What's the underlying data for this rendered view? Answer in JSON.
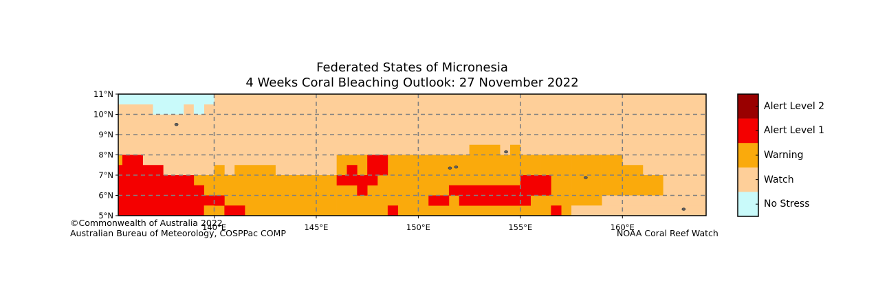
{
  "title": {
    "line1": "Federated States of Micronesia",
    "line2": "4 Weeks Coral Bleaching Outlook: 27 November 2022"
  },
  "map": {
    "lon_range": [
      135.3,
      164.1
    ],
    "lat_range": [
      5.0,
      11.0
    ],
    "cell_size_deg": 0.5,
    "lat_ticks": [
      {
        "value": 11,
        "label": "11°N"
      },
      {
        "value": 10,
        "label": "10°N"
      },
      {
        "value": 9,
        "label": "9°N"
      },
      {
        "value": 8,
        "label": "8°N"
      },
      {
        "value": 7,
        "label": "7°N"
      },
      {
        "value": 6,
        "label": "6°N"
      },
      {
        "value": 5,
        "label": "5°N"
      }
    ],
    "lon_ticks": [
      {
        "value": 140,
        "label": "140°E"
      },
      {
        "value": 145,
        "label": "145°E"
      },
      {
        "value": 150,
        "label": "150°E"
      },
      {
        "value": 155,
        "label": "155°E"
      },
      {
        "value": 160,
        "label": "160°E"
      }
    ],
    "default_level": "watch",
    "regions": [
      {
        "level": "nostress",
        "lon": [
          135.0,
          140.0
        ],
        "lat": [
          10.5,
          11.0
        ]
      },
      {
        "level": "nostress",
        "lon": [
          137.0,
          138.5
        ],
        "lat": [
          10.0,
          10.5
        ]
      },
      {
        "level": "nostress",
        "lon": [
          139.0,
          139.5
        ],
        "lat": [
          10.0,
          10.5
        ]
      },
      {
        "level": "warning",
        "lon": [
          146.0,
          156.0
        ],
        "lat": [
          5.0,
          8.0
        ]
      },
      {
        "level": "warning",
        "lon": [
          152.5,
          154.0
        ],
        "lat": [
          8.0,
          8.5
        ]
      },
      {
        "level": "warning",
        "lon": [
          154.5,
          155.0
        ],
        "lat": [
          8.0,
          8.5
        ]
      },
      {
        "level": "warning",
        "lon": [
          156.0,
          157.5
        ],
        "lat": [
          5.0,
          5.5
        ]
      },
      {
        "level": "warning",
        "lon": [
          156.0,
          157.5
        ],
        "lat": [
          5.5,
          8.0
        ]
      },
      {
        "level": "warning",
        "lon": [
          157.5,
          159.0
        ],
        "lat": [
          5.5,
          8.0
        ]
      },
      {
        "level": "warning",
        "lon": [
          159.0,
          161.0
        ],
        "lat": [
          6.0,
          7.5
        ]
      },
      {
        "level": "warning",
        "lon": [
          159.0,
          160.0
        ],
        "lat": [
          7.5,
          8.0
        ]
      },
      {
        "level": "warning",
        "lon": [
          161.0,
          162.0
        ],
        "lat": [
          6.0,
          7.0
        ]
      },
      {
        "level": "warning",
        "lon": [
          140.0,
          146.0
        ],
        "lat": [
          5.0,
          7.0
        ]
      },
      {
        "level": "warning",
        "lon": [
          139.0,
          140.0
        ],
        "lat": [
          5.0,
          7.0
        ]
      },
      {
        "level": "warning",
        "lon": [
          140.0,
          140.5
        ],
        "lat": [
          7.0,
          7.5
        ]
      },
      {
        "level": "warning",
        "lon": [
          141.0,
          143.0
        ],
        "lat": [
          7.0,
          7.5
        ]
      },
      {
        "level": "warning",
        "lon": [
          135.0,
          135.5
        ],
        "lat": [
          7.5,
          8.0
        ]
      },
      {
        "level": "alert1",
        "lon": [
          135.0,
          140.0
        ],
        "lat": [
          5.0,
          6.0
        ]
      },
      {
        "level": "alert1",
        "lon": [
          135.0,
          139.5
        ],
        "lat": [
          6.0,
          6.5
        ]
      },
      {
        "level": "alert1",
        "lon": [
          135.0,
          139.0
        ],
        "lat": [
          6.5,
          7.0
        ]
      },
      {
        "level": "alert1",
        "lon": [
          135.0,
          137.5
        ],
        "lat": [
          7.0,
          7.5
        ]
      },
      {
        "level": "alert1",
        "lon": [
          135.5,
          136.5
        ],
        "lat": [
          7.5,
          8.0
        ]
      },
      {
        "level": "alert1",
        "lon": [
          139.5,
          140.5
        ],
        "lat": [
          5.5,
          6.0
        ]
      },
      {
        "level": "alert1",
        "lon": [
          140.5,
          141.5
        ],
        "lat": [
          5.0,
          5.5
        ]
      },
      {
        "level": "warning",
        "lon": [
          139.5,
          140.0
        ],
        "lat": [
          5.0,
          5.5
        ]
      },
      {
        "level": "alert1",
        "lon": [
          146.0,
          148.0
        ],
        "lat": [
          6.5,
          7.0
        ]
      },
      {
        "level": "alert1",
        "lon": [
          146.5,
          147.0
        ],
        "lat": [
          7.0,
          7.5
        ]
      },
      {
        "level": "alert1",
        "lon": [
          147.0,
          147.5
        ],
        "lat": [
          6.0,
          6.5
        ]
      },
      {
        "level": "alert1",
        "lon": [
          147.5,
          148.5
        ],
        "lat": [
          7.0,
          8.0
        ]
      },
      {
        "level": "alert1",
        "lon": [
          148.5,
          149.0
        ],
        "lat": [
          5.0,
          5.5
        ]
      },
      {
        "level": "alert1",
        "lon": [
          150.5,
          151.5
        ],
        "lat": [
          5.5,
          6.0
        ]
      },
      {
        "level": "alert1",
        "lon": [
          151.5,
          155.0
        ],
        "lat": [
          6.0,
          6.5
        ]
      },
      {
        "level": "alert1",
        "lon": [
          152.0,
          155.5
        ],
        "lat": [
          5.5,
          6.0
        ]
      },
      {
        "level": "alert1",
        "lon": [
          155.0,
          156.5
        ],
        "lat": [
          6.0,
          7.0
        ]
      },
      {
        "level": "alert1",
        "lon": [
          156.5,
          157.0
        ],
        "lat": [
          5.0,
          5.5
        ]
      },
      {
        "level": "watch",
        "lon": [
          157.5,
          164.5
        ],
        "lat": [
          5.0,
          5.5
        ]
      },
      {
        "level": "watch",
        "lon": [
          159.0,
          164.5
        ],
        "lat": [
          5.5,
          6.0
        ]
      },
      {
        "level": "watch",
        "lon": [
          162.0,
          164.5
        ],
        "lat": [
          6.0,
          7.0
        ]
      }
    ],
    "islands": [
      {
        "lon": 138.15,
        "lat": 9.5
      },
      {
        "lon": 151.85,
        "lat": 7.4
      },
      {
        "lon": 151.55,
        "lat": 7.35
      },
      {
        "lon": 154.3,
        "lat": 8.15
      },
      {
        "lon": 158.2,
        "lat": 6.88
      },
      {
        "lon": 163.0,
        "lat": 5.32
      }
    ]
  },
  "legend": {
    "items": [
      {
        "key": "alert2",
        "label": "Alert Level 2",
        "color": "#990000"
      },
      {
        "key": "alert1",
        "label": "Alert Level 1",
        "color": "#f40000"
      },
      {
        "key": "warning",
        "label": "Warning",
        "color": "#faaa0c"
      },
      {
        "key": "watch",
        "label": "Watch",
        "color": "#fecf99"
      },
      {
        "key": "nostress",
        "label": "No Stress",
        "color": "#c9fafa"
      }
    ]
  },
  "credits": {
    "line1": "©Commonwealth of Australia 2022",
    "line2": "Australian Bureau of Meteorology, COSPPac COMP",
    "noaa": "NOAA Coral Reef Watch"
  }
}
